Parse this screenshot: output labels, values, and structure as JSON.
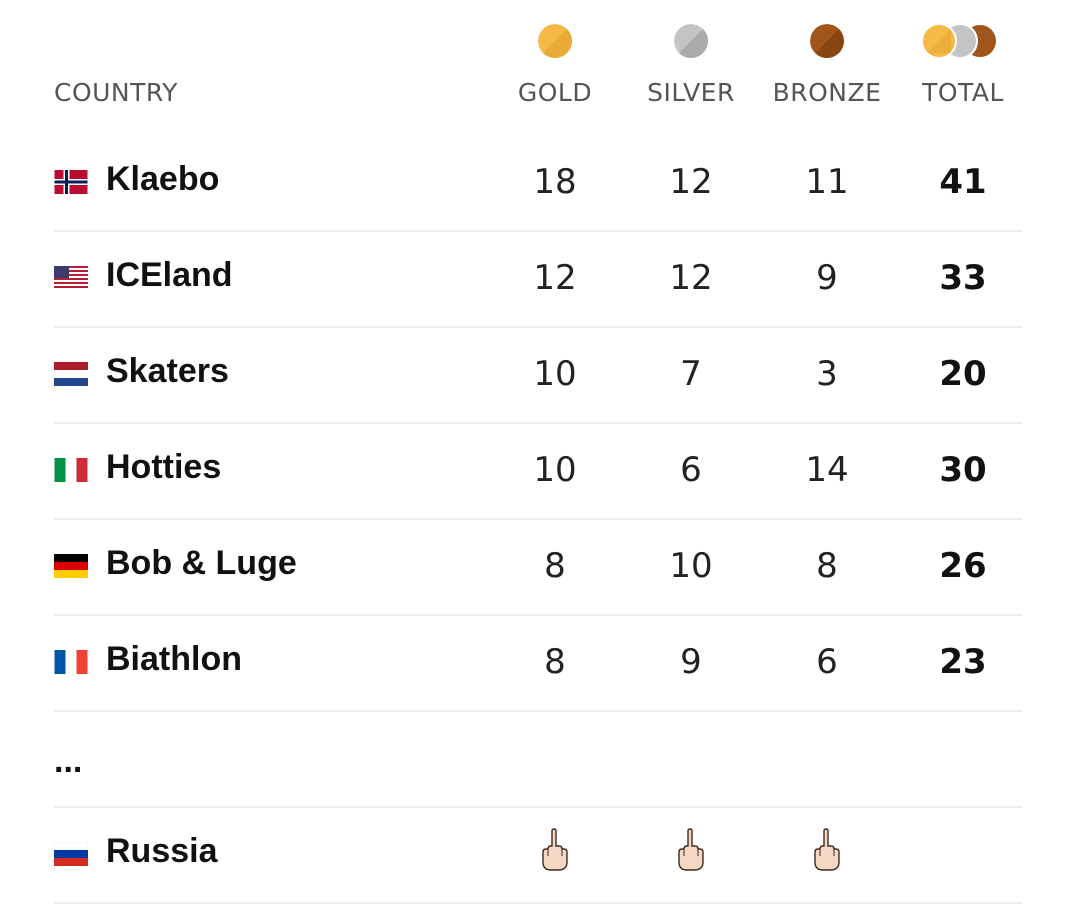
{
  "header": {
    "country": "COUNTRY",
    "gold": "GOLD",
    "silver": "SILVER",
    "bronze": "BRONZE",
    "total": "TOTAL",
    "medal_icons": [
      "gold-medal-icon",
      "silver-medal-icon",
      "bronze-medal-icon",
      "total-medals-icon"
    ]
  },
  "colors": {
    "gold": "#F5B944",
    "silver": "#BDBDBD",
    "bronze": "#A0561A",
    "divider": "#ECECEC",
    "header_text": "#555555"
  },
  "rows": [
    {
      "name": "Klaebo",
      "flag": "norway-flag-icon",
      "gold": "18",
      "silver": "12",
      "bronze": "11",
      "total": "41"
    },
    {
      "name": "ICEland",
      "flag": "usa-flag-icon",
      "gold": "12",
      "silver": "12",
      "bronze": "9",
      "total": "33"
    },
    {
      "name": "Skaters",
      "flag": "netherlands-flag-icon",
      "gold": "10",
      "silver": "7",
      "bronze": "3",
      "total": "20"
    },
    {
      "name": "Hotties",
      "flag": "italy-flag-icon",
      "gold": "10",
      "silver": "6",
      "bronze": "14",
      "total": "30"
    },
    {
      "name": "Bob & Luge",
      "flag": "germany-flag-icon",
      "gold": "8",
      "silver": "10",
      "bronze": "8",
      "total": "26"
    },
    {
      "name": "Biathlon",
      "flag": "france-flag-icon",
      "gold": "8",
      "silver": "9",
      "bronze": "6",
      "total": "23"
    }
  ],
  "ellipsis": "...",
  "last_row": {
    "name": "Russia",
    "flag": "russia-flag-icon",
    "gold": "middle-finger-icon",
    "silver": "middle-finger-icon",
    "bronze": "middle-finger-icon",
    "total": ""
  }
}
